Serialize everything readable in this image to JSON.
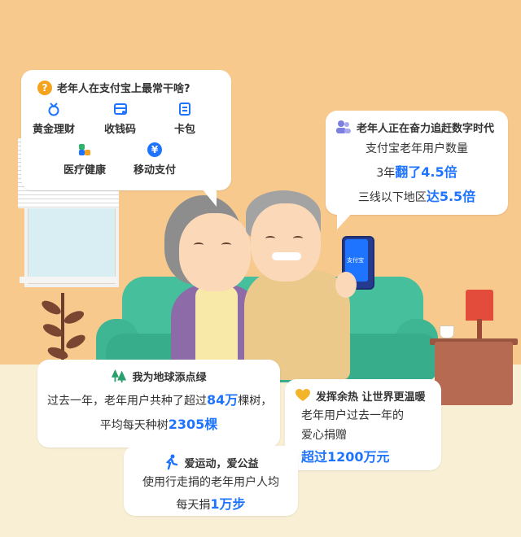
{
  "colors": {
    "accent": "#1f74ff",
    "question_icon": "#f4a31e",
    "wall": "#f7c98d",
    "floor": "#f8efd5",
    "sofa": "#45bf9c",
    "tree_icon": "#2a9f6e",
    "heart_icon": "#f4b428"
  },
  "top_bubble": {
    "icon": "question-circle-icon",
    "title": "老年人在支付宝上最常干啥?",
    "items": [
      {
        "icon": "gold-medal-icon",
        "label": "黄金理财"
      },
      {
        "icon": "cashier-icon",
        "label": "收钱码"
      },
      {
        "icon": "card-wallet-icon",
        "label": "卡包"
      },
      {
        "icon": "health-icon",
        "label": "医疗健康"
      },
      {
        "icon": "yuan-coin-icon",
        "symbol": "¥",
        "label": "移动支付"
      }
    ]
  },
  "right_bubble": {
    "icon": "people-icon",
    "title": "老年人正在奋力追赶数字时代",
    "line1": "支付宝老年用户数量",
    "line2_prefix": "3年",
    "line2_highlight": "翻了4.5倍",
    "line3_prefix": "三线以下地区",
    "line3_highlight": "达5.5倍"
  },
  "phone": {
    "app_label": "支付宝"
  },
  "tree_bubble": {
    "icon": "tree-icon",
    "title": "我为地球添点绿",
    "line1_prefix": "过去一年，老年用户共种了超过",
    "line1_highlight": "84万",
    "line1_suffix": "棵树，",
    "line2_prefix": "平均每天种树",
    "line2_highlight": "2305棵"
  },
  "donation_bubble": {
    "icon": "heart-icon",
    "title": "发挥余热 让世界更温暖",
    "line1": "老年用户过去一年的",
    "line2": "爱心捐赠",
    "line3_highlight": "超过1200万元"
  },
  "walk_bubble": {
    "icon": "running-person-icon",
    "title": "爱运动，爱公益",
    "line1": "使用行走捐的老年用户人均",
    "line2_prefix": "每天捐",
    "line2_highlight": "1万步"
  }
}
